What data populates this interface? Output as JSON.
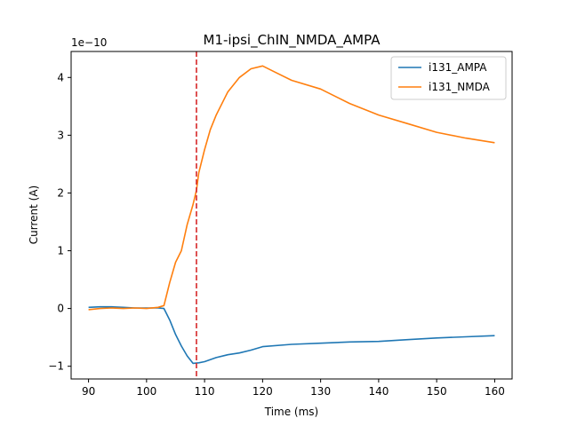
{
  "chart_data": {
    "type": "line",
    "title": "M1-ipsi_ChIN_NMDA_AMPA",
    "xlabel": "Time (ms)",
    "ylabel": "Current (A)",
    "y_offset_label": "1e−10",
    "xlim": [
      87,
      163
    ],
    "ylim": [
      -1.22,
      4.45
    ],
    "x_ticks": [
      90,
      100,
      110,
      120,
      130,
      140,
      150,
      160
    ],
    "y_ticks": [
      -1,
      0,
      1,
      2,
      3,
      4
    ],
    "y_tick_labels": [
      "−1",
      "0",
      "1",
      "2",
      "3",
      "4"
    ],
    "grid": false,
    "legend_position": "top-right",
    "vline": {
      "x": 108.6,
      "color": "#d62728",
      "style": "dashed"
    },
    "series": [
      {
        "name": "i131_AMPA",
        "color": "#1f77b4",
        "x": [
          90,
          92,
          94,
          96,
          98,
          100,
          102,
          103,
          104,
          105,
          106,
          107,
          108,
          109,
          110,
          112,
          114,
          116,
          118,
          120,
          125,
          130,
          135,
          140,
          145,
          150,
          155,
          160
        ],
        "y": [
          0.02,
          0.03,
          0.03,
          0.02,
          0.01,
          0.01,
          0.01,
          0.0,
          -0.2,
          -0.45,
          -0.65,
          -0.82,
          -0.95,
          -0.94,
          -0.92,
          -0.85,
          -0.8,
          -0.77,
          -0.72,
          -0.66,
          -0.62,
          -0.6,
          -0.58,
          -0.57,
          -0.54,
          -0.51,
          -0.49,
          -0.47
        ]
      },
      {
        "name": "i131_NMDA",
        "color": "#ff7f0e",
        "x": [
          90,
          92,
          94,
          96,
          98,
          100,
          102,
          103,
          104,
          105,
          106,
          107,
          108,
          108.6,
          109,
          110,
          111,
          112,
          114,
          116,
          118,
          120,
          122,
          125,
          130,
          135,
          140,
          145,
          150,
          155,
          160
        ],
        "y": [
          -0.02,
          0.0,
          0.01,
          0.0,
          0.01,
          0.0,
          0.02,
          0.05,
          0.45,
          0.8,
          1.0,
          1.45,
          1.8,
          2.05,
          2.35,
          2.75,
          3.1,
          3.35,
          3.75,
          4.0,
          4.15,
          4.2,
          4.1,
          3.95,
          3.8,
          3.55,
          3.35,
          3.2,
          3.05,
          2.95,
          2.87
        ]
      }
    ]
  }
}
